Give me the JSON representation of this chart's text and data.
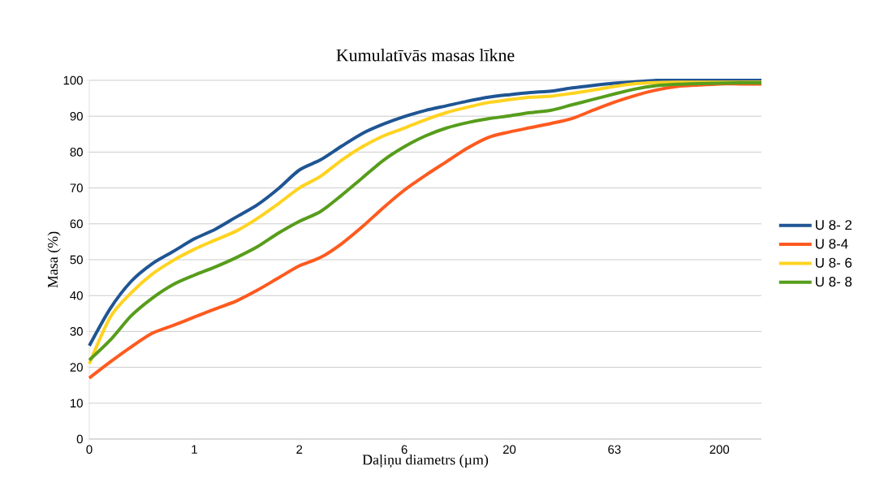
{
  "chart_data": {
    "type": "line",
    "title": "Kumulatīvās masas līkne",
    "xlabel": "Daļiņu diametrs (µm)",
    "ylabel": "Masa (%)",
    "categories": [
      "0",
      null,
      null,
      null,
      null,
      "1",
      null,
      null,
      null,
      null,
      "2",
      null,
      null,
      null,
      null,
      "6",
      null,
      null,
      null,
      null,
      "20",
      null,
      null,
      null,
      null,
      "63",
      null,
      null,
      null,
      null,
      "200",
      null,
      null
    ],
    "series": [
      {
        "name": "U 8- 2",
        "color": "#1f5593",
        "values": [
          26,
          36.4,
          44,
          48.9,
          52.3,
          55.8,
          58.5,
          61.9,
          65.3,
          69.8,
          75,
          77.8,
          81.6,
          85.2,
          87.8,
          89.9,
          91.6,
          92.9,
          94.2,
          95.3,
          96,
          96.6,
          97,
          97.9,
          98.6,
          99.2,
          99.6,
          100,
          100,
          100,
          100,
          100,
          100
        ]
      },
      {
        "name": "U 8-4",
        "color": "#ff5a1f",
        "values": [
          17,
          21.5,
          25.7,
          29.5,
          31.7,
          34,
          36.3,
          38.5,
          41.5,
          44.9,
          48.3,
          50.6,
          54.4,
          59.2,
          64.5,
          69.4,
          73.5,
          77.3,
          81.1,
          84.1,
          85.6,
          86.8,
          88,
          89.4,
          91.7,
          93.9,
          95.8,
          97.3,
          98.3,
          98.7,
          99,
          99,
          99
        ]
      },
      {
        "name": "U 8- 6",
        "color": "#ffd320",
        "values": [
          21,
          34,
          40.8,
          46,
          49.8,
          52.9,
          55.5,
          58,
          61.5,
          65.6,
          70,
          73.2,
          77.7,
          81.5,
          84.5,
          86.7,
          89,
          91,
          92.5,
          93.8,
          94.6,
          95.3,
          95.6,
          96.4,
          97.3,
          98.3,
          99.1,
          99.4,
          99.5,
          99.5,
          99.5,
          99.5,
          99.5
        ]
      },
      {
        "name": "U 8- 8",
        "color": "#579d1c",
        "values": [
          22,
          27.6,
          34.4,
          39.3,
          43.1,
          45.7,
          48,
          50.6,
          53.6,
          57.4,
          60.7,
          63.4,
          67.9,
          72.8,
          77.7,
          81.5,
          84.5,
          86.7,
          88.2,
          89.3,
          90.1,
          91,
          91.7,
          93.2,
          94.7,
          96.2,
          97.6,
          98.5,
          98.9,
          99.1,
          99.2,
          99.3,
          99.3
        ]
      }
    ],
    "ylim": [
      0,
      100
    ],
    "yticks": [
      0,
      10,
      20,
      30,
      40,
      50,
      60,
      70,
      80,
      90,
      100
    ],
    "grid": "y",
    "legend": "right",
    "marker": "none",
    "line_style": "solid"
  }
}
